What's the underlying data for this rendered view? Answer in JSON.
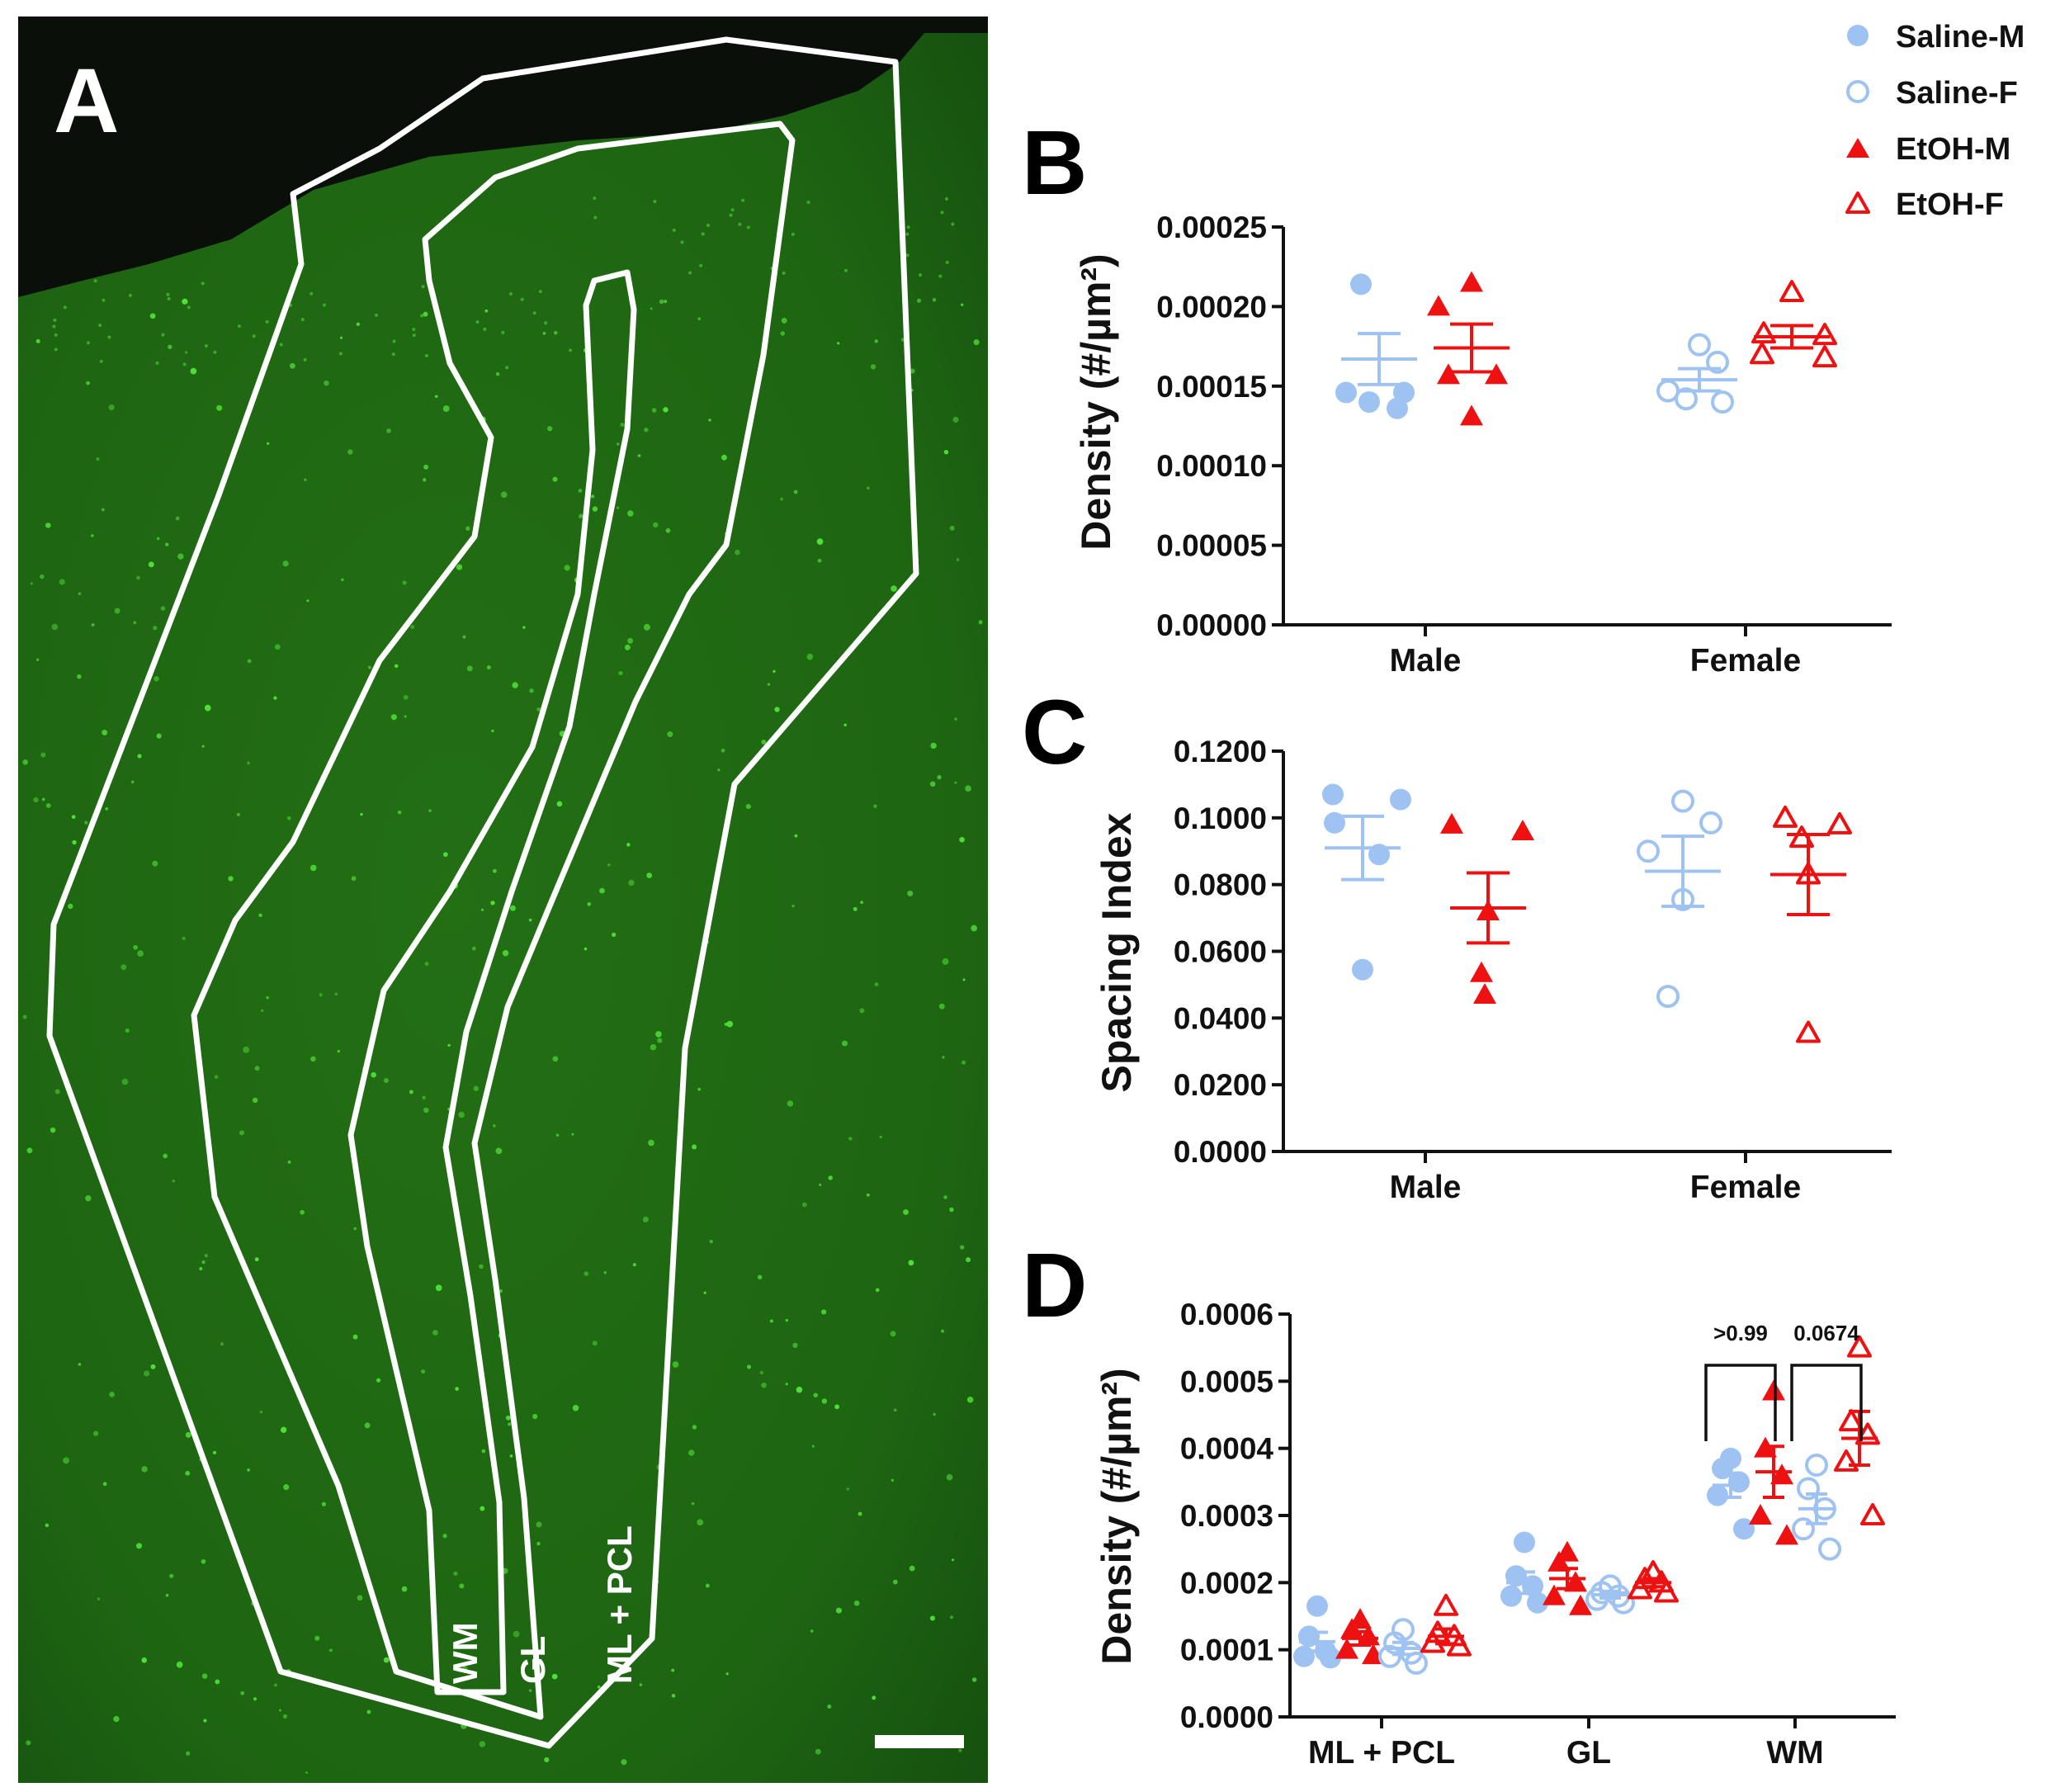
{
  "colors": {
    "saline": "#9ec3f2",
    "etoh": "#ee1111",
    "axis": "#111111",
    "micrograph_bg": "#1f6e12",
    "micrograph_dark": "#0a0f0a",
    "outline": "#ffffff"
  },
  "panel_a": {
    "letter": "A",
    "region_labels": [
      "WM",
      "GL",
      "ML + PCL"
    ]
  },
  "legend": {
    "entries": [
      {
        "label": "Saline-M",
        "marker": "circle-filled",
        "color": "#9ec3f2"
      },
      {
        "label": "Saline-F",
        "marker": "circle-open",
        "color": "#9ec3f2"
      },
      {
        "label": "EtOH-M",
        "marker": "triangle-filled",
        "color": "#ee1111"
      },
      {
        "label": "EtOH-F",
        "marker": "triangle-open",
        "color": "#ee1111"
      }
    ]
  },
  "chart_data": [
    {
      "panel": "B",
      "type": "scatter",
      "ylabel": "Density (#/µm²)",
      "ylim": [
        0,
        0.00025
      ],
      "yticks": [
        "0.00000",
        "0.00005",
        "0.00010",
        "0.00015",
        "0.00020",
        "0.00025"
      ],
      "ytick_values": [
        0,
        5e-05,
        0.0001,
        0.00015,
        0.0002,
        0.00025
      ],
      "categories": [
        "Male",
        "Female"
      ],
      "series": [
        {
          "name": "Saline-M",
          "category": "Male",
          "offset": -0.5,
          "marker": "circle-filled",
          "color": "#9ec3f2",
          "values": [
            0.000214,
            0.000146,
            0.000146,
            0.00014,
            0.000136
          ],
          "mean": 0.000167,
          "sem": 1.6e-05
        },
        {
          "name": "EtOH-M",
          "category": "Male",
          "offset": 0.5,
          "marker": "triangle-filled",
          "color": "#ee1111",
          "values": [
            0.000215,
            0.0002,
            0.000157,
            0.000157,
            0.000131
          ],
          "mean": 0.000174,
          "sem": 1.5e-05
        },
        {
          "name": "Saline-F",
          "category": "Female",
          "offset": -0.5,
          "marker": "circle-open",
          "color": "#9ec3f2",
          "values": [
            0.000176,
            0.000165,
            0.000147,
            0.000142,
            0.00014
          ],
          "mean": 0.000154,
          "sem": 7e-06
        },
        {
          "name": "EtOH-F",
          "category": "Female",
          "offset": 0.5,
          "marker": "triangle-open",
          "color": "#ee1111",
          "values": [
            0.000209,
            0.000183,
            0.000182,
            0.00017,
            0.000168
          ],
          "mean": 0.000181,
          "sem": 7e-06
        }
      ]
    },
    {
      "panel": "C",
      "type": "scatter",
      "ylabel": "Spacing Index",
      "ylim": [
        0,
        0.12
      ],
      "yticks": [
        "0.0000",
        "0.0200",
        "0.0400",
        "0.0600",
        "0.0800",
        "0.1000",
        "0.1200"
      ],
      "ytick_values": [
        0,
        0.02,
        0.04,
        0.06,
        0.08,
        0.1,
        0.12
      ],
      "categories": [
        "Male",
        "Female"
      ],
      "series": [
        {
          "name": "Saline-M",
          "category": "Male",
          "offset": -0.5,
          "marker": "circle-filled",
          "color": "#9ec3f2",
          "values": [
            0.107,
            0.1055,
            0.0985,
            0.089,
            0.0545
          ],
          "mean": 0.091,
          "sem": 0.0095
        },
        {
          "name": "EtOH-M",
          "category": "Male",
          "offset": 0.5,
          "marker": "triangle-filled",
          "color": "#ee1111",
          "values": [
            0.098,
            0.096,
            0.072,
            0.0535,
            0.047
          ],
          "mean": 0.073,
          "sem": 0.0105
        },
        {
          "name": "Saline-F",
          "category": "Female",
          "offset": -0.5,
          "marker": "circle-open",
          "color": "#9ec3f2",
          "values": [
            0.105,
            0.0985,
            0.09,
            0.0755,
            0.0465
          ],
          "mean": 0.084,
          "sem": 0.0105
        },
        {
          "name": "EtOH-F",
          "category": "Female",
          "offset": 0.5,
          "marker": "triangle-open",
          "color": "#ee1111",
          "values": [
            0.1,
            0.098,
            0.094,
            0.083,
            0.0355
          ],
          "mean": 0.083,
          "sem": 0.012
        }
      ]
    },
    {
      "panel": "D",
      "type": "scatter",
      "ylabel": "Density (#/µm²)",
      "ylim": [
        0,
        0.0006
      ],
      "yticks": [
        "0.0000",
        "0.0001",
        "0.0002",
        "0.0003",
        "0.0004",
        "0.0005",
        "0.0006"
      ],
      "ytick_values": [
        0,
        0.0001,
        0.0002,
        0.0003,
        0.0004,
        0.0005,
        0.0006
      ],
      "categories": [
        "ML + PCL",
        "GL",
        "WM"
      ],
      "series": [
        {
          "name": "Saline-M",
          "category": "ML + PCL",
          "offset": -1.5,
          "marker": "circle-filled",
          "color": "#9ec3f2",
          "values": [
            0.000165,
            0.00012,
            9.8e-05,
            9e-05,
            8.8e-05
          ],
          "mean": 0.000112,
          "sem": 1.4e-05
        },
        {
          "name": "EtOH-M",
          "category": "ML + PCL",
          "offset": -0.5,
          "marker": "triangle-filled",
          "color": "#ee1111",
          "values": [
            0.000145,
            0.00013,
            0.00012,
            0.0001,
            9.2e-05
          ],
          "mean": 0.000117,
          "sem": 1e-05
        },
        {
          "name": "Saline-F",
          "category": "ML + PCL",
          "offset": 0.5,
          "marker": "circle-open",
          "color": "#9ec3f2",
          "values": [
            0.00013,
            0.00011,
            9.5e-05,
            9e-05,
            8e-05
          ],
          "mean": 0.000102,
          "sem": 9e-06
        },
        {
          "name": "EtOH-F",
          "category": "ML + PCL",
          "offset": 1.5,
          "marker": "triangle-open",
          "color": "#ee1111",
          "values": [
            0.000165,
            0.000125,
            0.00012,
            0.00011,
            0.000105
          ],
          "mean": 0.00012,
          "sem": 1.1e-05
        },
        {
          "name": "Saline-M",
          "category": "GL",
          "offset": -1.5,
          "marker": "circle-filled",
          "color": "#9ec3f2",
          "values": [
            0.00026,
            0.00021,
            0.000195,
            0.00018,
            0.00017
          ],
          "mean": 0.0002,
          "sem": 1.6e-05
        },
        {
          "name": "EtOH-M",
          "category": "GL",
          "offset": -0.5,
          "marker": "triangle-filled",
          "color": "#ee1111",
          "values": [
            0.000245,
            0.00023,
            0.0002,
            0.00018,
            0.000165
          ],
          "mean": 0.000206,
          "sem": 1.5e-05
        },
        {
          "name": "Saline-F",
          "category": "GL",
          "offset": 0.5,
          "marker": "circle-open",
          "color": "#9ec3f2",
          "values": [
            0.000195,
            0.000185,
            0.00018,
            0.000175,
            0.00017
          ],
          "mean": 0.000182,
          "sem": 5e-06
        },
        {
          "name": "EtOH-F",
          "category": "GL",
          "offset": 1.5,
          "marker": "triangle-open",
          "color": "#ee1111",
          "values": [
            0.000215,
            0.000205,
            0.0002,
            0.00019,
            0.000185
          ],
          "mean": 0.0002,
          "sem": 6e-06
        },
        {
          "name": "Saline-M",
          "category": "WM",
          "offset": -1.5,
          "marker": "circle-filled",
          "color": "#9ec3f2",
          "values": [
            0.000385,
            0.00037,
            0.00035,
            0.00033,
            0.00028
          ],
          "mean": 0.000345,
          "sem": 1.8e-05
        },
        {
          "name": "EtOH-M",
          "category": "WM",
          "offset": -0.5,
          "marker": "triangle-filled",
          "color": "#ee1111",
          "values": [
            0.000485,
            0.0004,
            0.00036,
            0.0003,
            0.00027
          ],
          "mean": 0.000365,
          "sem": 3.8e-05
        },
        {
          "name": "Saline-F",
          "category": "WM",
          "offset": 0.5,
          "marker": "circle-open",
          "color": "#9ec3f2",
          "values": [
            0.000375,
            0.00034,
            0.00031,
            0.00028,
            0.00025
          ],
          "mean": 0.00031,
          "sem": 2.2e-05
        },
        {
          "name": "EtOH-F",
          "category": "WM",
          "offset": 1.5,
          "marker": "triangle-open",
          "color": "#ee1111",
          "values": [
            0.00055,
            0.00044,
            0.00042,
            0.00038,
            0.0003
          ],
          "mean": 0.000415,
          "sem": 4e-05
        }
      ],
      "annotations": [
        {
          "category": "WM",
          "from_offset": -1.5,
          "to_offset": -0.5,
          "text": ">0.99"
        },
        {
          "category": "WM",
          "from_offset": 0.5,
          "to_offset": 1.5,
          "text": "0.0674"
        }
      ]
    }
  ]
}
